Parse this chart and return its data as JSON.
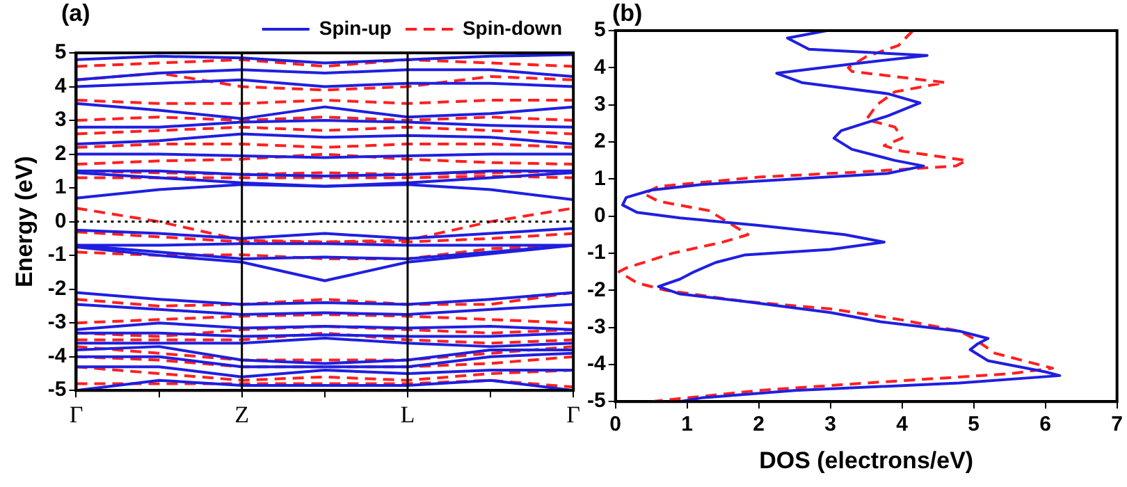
{
  "chart_data": [
    {
      "type": "line",
      "title": "(a)",
      "ylabel": "Energy (eV)",
      "categories": [
        "Γ",
        null,
        "Z",
        null,
        "L",
        null,
        "Γ"
      ],
      "ylim": [
        -5,
        5
      ],
      "yticks": [
        -5,
        -4,
        -3,
        -2,
        -1,
        0,
        1,
        2,
        3,
        4,
        5
      ],
      "grid": false,
      "legend": "top right",
      "marker": "none",
      "ref_lines": [
        {
          "axis": "x",
          "value": "Z",
          "color": "#000000",
          "line_style": "solid"
        },
        {
          "axis": "x",
          "value": "L",
          "color": "#000000",
          "line_style": "solid"
        },
        {
          "axis": "y",
          "value": 0,
          "color": "#000000",
          "line_style": "dotted"
        }
      ],
      "series": [
        {
          "name": "Spin-up",
          "color": "#1f1fe0",
          "line_style": "solid",
          "values": [
            0.7,
            0.95,
            1.1,
            1.05,
            1.1,
            0.95,
            0.65
          ]
        },
        {
          "color": "#1f1fe0",
          "line_style": "solid",
          "values": [
            1.45,
            1.3,
            1.15,
            1.05,
            1.15,
            1.3,
            1.45
          ]
        },
        {
          "color": "#1f1fe0",
          "line_style": "solid",
          "values": [
            1.5,
            1.5,
            1.4,
            1.35,
            1.4,
            1.5,
            1.5
          ]
        },
        {
          "color": "#1f1fe0",
          "line_style": "solid",
          "values": [
            2.0,
            2.0,
            1.95,
            1.9,
            1.95,
            2.0,
            2.0
          ]
        },
        {
          "color": "#1f1fe0",
          "line_style": "solid",
          "values": [
            2.3,
            2.4,
            2.6,
            2.5,
            2.55,
            2.5,
            2.3
          ]
        },
        {
          "color": "#1f1fe0",
          "line_style": "solid",
          "values": [
            2.8,
            2.8,
            2.95,
            3.0,
            2.95,
            2.85,
            2.8
          ]
        },
        {
          "color": "#1f1fe0",
          "line_style": "solid",
          "values": [
            3.5,
            3.3,
            3.05,
            3.4,
            3.1,
            3.2,
            3.4
          ]
        },
        {
          "color": "#1f1fe0",
          "line_style": "solid",
          "values": [
            4.0,
            4.1,
            4.2,
            4.0,
            4.1,
            4.1,
            4.0
          ]
        },
        {
          "color": "#1f1fe0",
          "line_style": "solid",
          "values": [
            4.2,
            4.4,
            4.5,
            4.4,
            4.5,
            4.5,
            4.3
          ]
        },
        {
          "color": "#1f1fe0",
          "line_style": "solid",
          "values": [
            4.8,
            4.9,
            4.85,
            4.7,
            4.8,
            4.9,
            4.95
          ]
        },
        {
          "color": "#1f1fe0",
          "line_style": "solid",
          "values": [
            -0.25,
            -0.35,
            -0.5,
            -0.35,
            -0.5,
            -0.35,
            -0.2
          ]
        },
        {
          "color": "#1f1fe0",
          "line_style": "solid",
          "values": [
            -0.7,
            -0.7,
            -0.65,
            -0.65,
            -0.7,
            -0.7,
            -0.7
          ]
        },
        {
          "color": "#1f1fe0",
          "line_style": "solid",
          "values": [
            -0.7,
            -0.9,
            -1.1,
            -1.05,
            -1.1,
            -0.9,
            -0.7
          ]
        },
        {
          "color": "#1f1fe0",
          "line_style": "solid",
          "values": [
            -0.75,
            -1.0,
            -1.2,
            -1.75,
            -1.2,
            -0.95,
            -0.7
          ]
        },
        {
          "color": "#1f1fe0",
          "line_style": "solid",
          "values": [
            -2.1,
            -2.3,
            -2.45,
            -2.4,
            -2.45,
            -2.3,
            -2.1
          ]
        },
        {
          "color": "#1f1fe0",
          "line_style": "solid",
          "values": [
            -2.45,
            -2.6,
            -2.75,
            -2.7,
            -2.75,
            -2.6,
            -2.45
          ]
        },
        {
          "color": "#1f1fe0",
          "line_style": "solid",
          "values": [
            -3.2,
            -3.0,
            -3.15,
            -3.1,
            -3.15,
            -3.1,
            -3.2
          ]
        },
        {
          "color": "#1f1fe0",
          "line_style": "solid",
          "values": [
            -3.3,
            -3.3,
            -3.4,
            -3.35,
            -3.4,
            -3.4,
            -3.3
          ]
        },
        {
          "color": "#1f1fe0",
          "line_style": "solid",
          "values": [
            -3.6,
            -3.6,
            -3.6,
            -3.45,
            -3.6,
            -3.7,
            -3.6
          ]
        },
        {
          "color": "#1f1fe0",
          "line_style": "solid",
          "values": [
            -3.8,
            -3.7,
            -4.1,
            -4.2,
            -4.1,
            -3.8,
            -3.8
          ]
        },
        {
          "color": "#1f1fe0",
          "line_style": "solid",
          "values": [
            -4.0,
            -4.0,
            -4.3,
            -4.3,
            -4.3,
            -4.0,
            -3.9
          ]
        },
        {
          "color": "#1f1fe0",
          "line_style": "solid",
          "values": [
            -4.3,
            -4.3,
            -4.6,
            -4.4,
            -4.5,
            -4.4,
            -4.4
          ]
        },
        {
          "color": "#1f1fe0",
          "line_style": "solid",
          "values": [
            -5.0,
            -4.7,
            -4.85,
            -4.85,
            -4.85,
            -4.7,
            -5.0
          ]
        },
        {
          "name": "Spin-down",
          "color": "#ff2020",
          "line_style": "dashed",
          "values": [
            0.4,
            0.0,
            -0.55,
            -0.6,
            -0.55,
            0.0,
            0.4
          ]
        },
        {
          "color": "#ff2020",
          "line_style": "dashed",
          "values": [
            -0.3,
            -0.45,
            -0.6,
            -0.6,
            -0.6,
            -0.5,
            -0.35
          ]
        },
        {
          "color": "#ff2020",
          "line_style": "dashed",
          "values": [
            1.3,
            1.3,
            1.3,
            1.3,
            1.3,
            1.35,
            1.3
          ]
        },
        {
          "color": "#ff2020",
          "line_style": "dashed",
          "values": [
            1.5,
            1.45,
            1.4,
            1.45,
            1.4,
            1.45,
            1.5
          ]
        },
        {
          "color": "#ff2020",
          "line_style": "dashed",
          "values": [
            1.7,
            1.8,
            1.85,
            2.0,
            1.85,
            1.75,
            1.7
          ]
        },
        {
          "color": "#ff2020",
          "line_style": "dashed",
          "values": [
            2.2,
            2.3,
            2.3,
            2.2,
            2.3,
            2.3,
            2.2
          ]
        },
        {
          "color": "#ff2020",
          "line_style": "dashed",
          "values": [
            2.6,
            2.7,
            2.8,
            2.7,
            2.8,
            2.7,
            2.6
          ]
        },
        {
          "color": "#ff2020",
          "line_style": "dashed",
          "values": [
            3.0,
            3.1,
            3.0,
            3.1,
            3.0,
            3.1,
            3.0
          ]
        },
        {
          "color": "#ff2020",
          "line_style": "dashed",
          "values": [
            3.6,
            3.5,
            3.5,
            3.6,
            3.5,
            3.6,
            3.6
          ]
        },
        {
          "color": "#ff2020",
          "line_style": "dashed",
          "values": [
            4.2,
            4.4,
            4.0,
            3.9,
            4.0,
            4.3,
            4.2
          ]
        },
        {
          "color": "#ff2020",
          "line_style": "dashed",
          "values": [
            4.6,
            4.7,
            4.8,
            4.6,
            4.8,
            4.7,
            4.6
          ]
        },
        {
          "color": "#ff2020",
          "line_style": "dashed",
          "values": [
            -0.9,
            -1.0,
            -0.98,
            -1.1,
            -1.1,
            -0.8,
            -0.7
          ]
        },
        {
          "color": "#ff2020",
          "line_style": "dashed",
          "values": [
            -2.3,
            -2.5,
            -2.45,
            -2.3,
            -2.45,
            -2.45,
            -2.1
          ]
        },
        {
          "color": "#ff2020",
          "line_style": "dashed",
          "values": [
            -3.0,
            -2.9,
            -2.8,
            -2.75,
            -2.8,
            -2.9,
            -3.0
          ]
        },
        {
          "color": "#ff2020",
          "line_style": "dashed",
          "values": [
            -3.3,
            -3.4,
            -3.2,
            -3.1,
            -3.2,
            -3.3,
            -3.2
          ]
        },
        {
          "color": "#ff2020",
          "line_style": "dashed",
          "values": [
            -3.5,
            -3.5,
            -3.5,
            -3.3,
            -3.5,
            -3.6,
            -3.5
          ]
        },
        {
          "color": "#ff2020",
          "line_style": "dashed",
          "values": [
            -3.7,
            -3.9,
            -4.1,
            -4.1,
            -4.1,
            -3.9,
            -3.7
          ]
        },
        {
          "color": "#ff2020",
          "line_style": "dashed",
          "values": [
            -4.0,
            -4.1,
            -4.3,
            -4.3,
            -4.3,
            -4.2,
            -4.0
          ]
        },
        {
          "color": "#ff2020",
          "line_style": "dashed",
          "values": [
            -4.3,
            -4.5,
            -4.7,
            -4.6,
            -4.7,
            -4.5,
            -4.4
          ]
        },
        {
          "color": "#ff2020",
          "line_style": "dashed",
          "values": [
            -4.8,
            -4.8,
            -4.8,
            -4.8,
            -4.8,
            -4.7,
            -4.9
          ]
        }
      ]
    },
    {
      "type": "line",
      "title": "(b)",
      "xlabel": "DOS (electrons/eV)",
      "xlim": [
        0,
        7
      ],
      "xticks": [
        0,
        1,
        2,
        3,
        4,
        5,
        6,
        7
      ],
      "ylim": [
        -5,
        5
      ],
      "yticks": [
        -5,
        -4,
        -3,
        -2,
        -1,
        0,
        1,
        2,
        3,
        4,
        5
      ],
      "grid": false,
      "marker": "none",
      "series": [
        {
          "color": "#1f1fe0",
          "line_style": "solid",
          "x": [
            2.95,
            2.4,
            2.7,
            4.35,
            3.3,
            2.25,
            2.6,
            3.8,
            4.25,
            3.8,
            3.15,
            3.05,
            3.3,
            3.9,
            4.3,
            3.8,
            2.5,
            1.2,
            0.5,
            0.15,
            0.1,
            0.3,
            0.9,
            2.0,
            3.2,
            3.75,
            3.0,
            1.8,
            1.4,
            1.1,
            0.9,
            0.6,
            0.9,
            1.8,
            3.0,
            3.7,
            4.8,
            5.2,
            5.05,
            4.95,
            5.2,
            6.0,
            6.2,
            4.8,
            2.5,
            1.2,
            0.9
          ],
          "values": [
            5.0,
            4.8,
            4.5,
            4.33,
            4.1,
            3.85,
            3.6,
            3.3,
            3.05,
            2.7,
            2.3,
            2.1,
            1.8,
            1.5,
            1.35,
            1.15,
            1.0,
            0.85,
            0.7,
            0.5,
            0.3,
            0.1,
            -0.05,
            -0.25,
            -0.5,
            -0.7,
            -0.9,
            -1.05,
            -1.25,
            -1.5,
            -1.7,
            -1.9,
            -2.1,
            -2.3,
            -2.6,
            -2.85,
            -3.1,
            -3.3,
            -3.45,
            -3.6,
            -3.9,
            -4.2,
            -4.3,
            -4.5,
            -4.7,
            -4.9,
            -5.0
          ]
        },
        {
          "color": "#ff2020",
          "line_style": "dashed",
          "x": [
            4.15,
            3.95,
            3.5,
            3.25,
            3.3,
            4.6,
            3.9,
            3.65,
            3.5,
            3.9,
            4.0,
            3.75,
            4.0,
            4.9,
            4.75,
            3.5,
            2.0,
            0.6,
            0.4,
            0.6,
            1.3,
            1.6,
            1.85,
            1.5,
            0.8,
            0.15,
            0.05,
            0.3,
            0.7,
            1.8,
            3.0,
            4.0,
            4.8,
            5.0,
            5.3,
            6.1,
            5.5,
            3.5,
            2.0,
            0.5
          ],
          "values": [
            5.0,
            4.6,
            4.3,
            4.0,
            3.9,
            3.6,
            3.35,
            3.0,
            2.6,
            2.4,
            2.1,
            1.9,
            1.75,
            1.5,
            1.35,
            1.2,
            1.05,
            0.8,
            0.6,
            0.4,
            0.15,
            -0.2,
            -0.5,
            -0.7,
            -1.0,
            -1.4,
            -1.5,
            -1.8,
            -2.0,
            -2.3,
            -2.5,
            -2.8,
            -3.1,
            -3.3,
            -3.7,
            -4.1,
            -4.25,
            -4.5,
            -4.7,
            -5.0
          ]
        }
      ]
    }
  ]
}
